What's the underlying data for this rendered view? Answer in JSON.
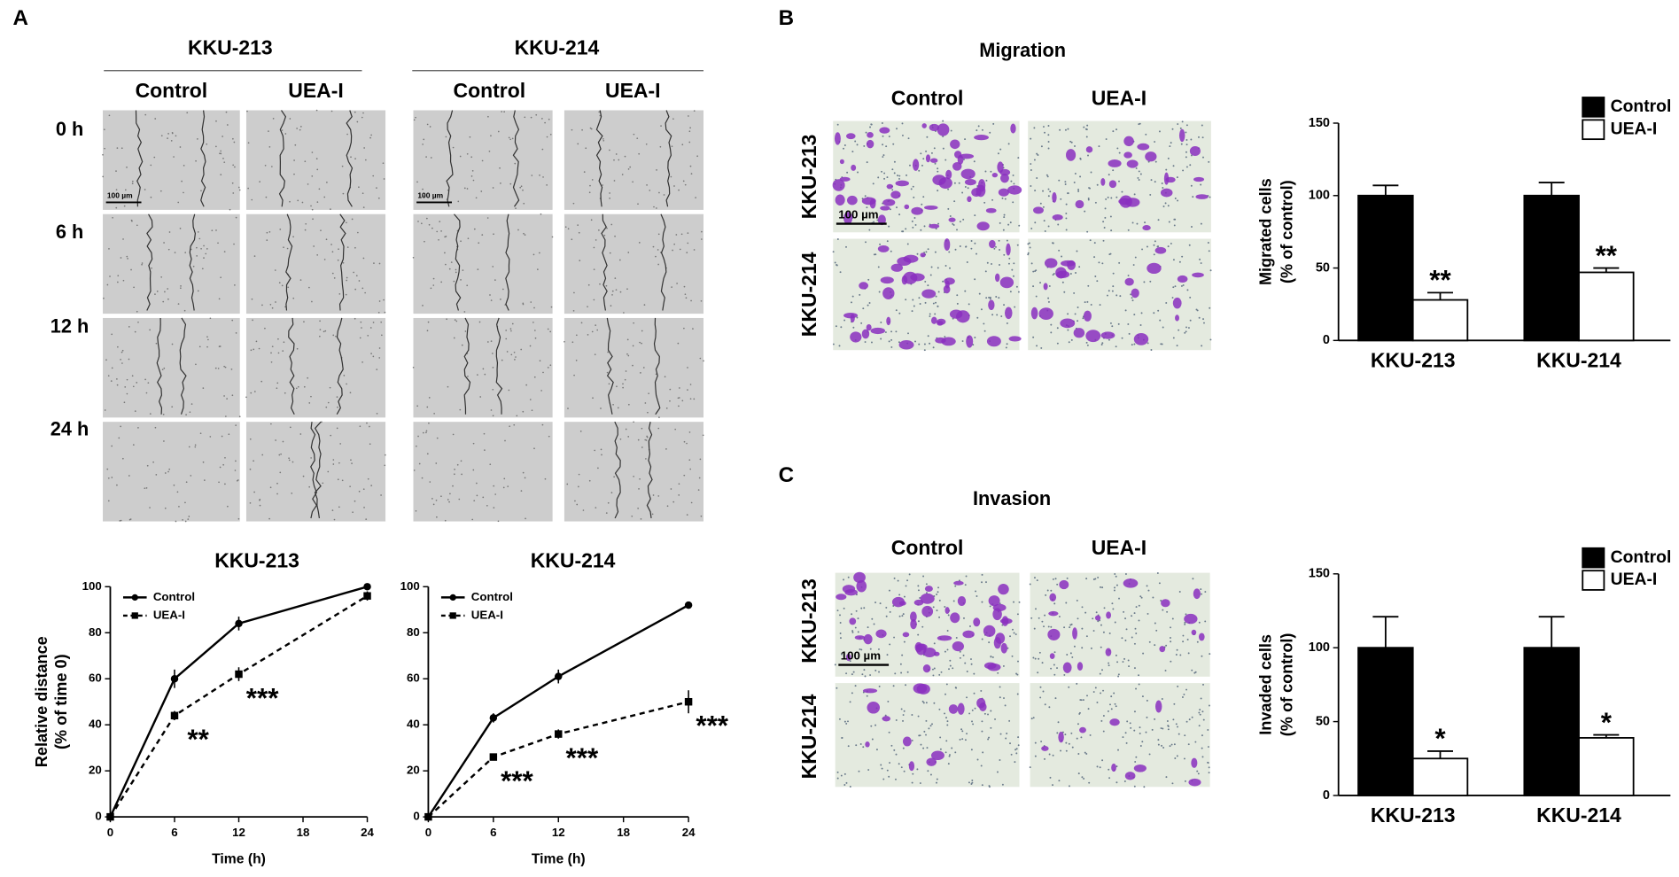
{
  "panels": {
    "A": {
      "label": "A",
      "cell_lines": [
        "KKU-213",
        "KKU-214"
      ],
      "conditions": [
        "Control",
        "UEA-I"
      ],
      "times": [
        "0 h",
        "6 h",
        "12 h",
        "24 h"
      ],
      "scale_bar": "100 µm"
    },
    "B": {
      "label": "B",
      "title": "Migration",
      "conditions": [
        "Control",
        "UEA-I"
      ],
      "cell_lines": [
        "KKU-213",
        "KKU-214"
      ],
      "scale_bar": "100 µm"
    },
    "C": {
      "label": "C",
      "title": "Invasion",
      "conditions": [
        "Control",
        "UEA-I"
      ],
      "cell_lines": [
        "KKU-213",
        "KKU-214"
      ],
      "scale_bar": "100 µm"
    }
  },
  "chart_data": [
    {
      "type": "line",
      "title": "KKU-213",
      "xlabel": "Time (h)",
      "ylabel": [
        "Relative distance",
        "(% of time 0)"
      ],
      "x": [
        0,
        6,
        12,
        24
      ],
      "xlim": [
        0,
        24
      ],
      "xticks": [
        0,
        6,
        12,
        18,
        24
      ],
      "ylim": [
        0,
        100
      ],
      "yticks": [
        0,
        20,
        40,
        60,
        80,
        100
      ],
      "legend": "upper left",
      "series": [
        {
          "name": "Control",
          "color": "#000000",
          "linestyle": "solid",
          "marker": "circle",
          "values": [
            0,
            60,
            84,
            100
          ],
          "errors": [
            0,
            4,
            3,
            1
          ],
          "significance": [
            null,
            null,
            null,
            null
          ]
        },
        {
          "name": "UEA-I",
          "color": "#000000",
          "linestyle": "dashed",
          "marker": "square",
          "values": [
            0,
            44,
            62,
            96
          ],
          "errors": [
            0,
            2,
            3,
            2
          ],
          "significance": [
            null,
            "**",
            "***",
            null
          ]
        }
      ]
    },
    {
      "type": "line",
      "title": "KKU-214",
      "xlabel": "Time (h)",
      "x": [
        0,
        6,
        12,
        24
      ],
      "xlim": [
        0,
        24
      ],
      "xticks": [
        0,
        6,
        12,
        18,
        24
      ],
      "ylim": [
        0,
        100
      ],
      "yticks": [
        0,
        20,
        40,
        60,
        80,
        100
      ],
      "legend": "upper left",
      "series": [
        {
          "name": "Control",
          "color": "#000000",
          "linestyle": "solid",
          "marker": "circle",
          "values": [
            0,
            43,
            61,
            92
          ],
          "errors": [
            0,
            2,
            3,
            1.5
          ],
          "significance": [
            null,
            null,
            null,
            null
          ]
        },
        {
          "name": "UEA-I",
          "color": "#000000",
          "linestyle": "dashed",
          "marker": "square",
          "values": [
            0,
            26,
            36,
            50
          ],
          "errors": [
            0,
            1.5,
            2,
            5
          ],
          "significance": [
            null,
            "***",
            "***",
            "***"
          ]
        }
      ]
    },
    {
      "type": "bar",
      "ylabel": [
        "Migrated cells",
        "(% of control)"
      ],
      "categories": [
        "KKU-213",
        "KKU-214"
      ],
      "ylim": [
        0,
        150
      ],
      "yticks": [
        0,
        50,
        100,
        150
      ],
      "legend": "upper right",
      "series": [
        {
          "name": "Control",
          "color": "#000000",
          "values": [
            100,
            100
          ],
          "errors": [
            7,
            9
          ],
          "significance": [
            null,
            null
          ]
        },
        {
          "name": "UEA-I",
          "color": "#ffffff",
          "values": [
            28,
            47
          ],
          "errors": [
            5,
            3
          ],
          "significance": [
            "**",
            "**"
          ]
        }
      ]
    },
    {
      "type": "bar",
      "ylabel": [
        "Invaded cells",
        "(% of control)"
      ],
      "categories": [
        "KKU-213",
        "KKU-214"
      ],
      "ylim": [
        0,
        150
      ],
      "yticks": [
        0,
        50,
        100,
        150
      ],
      "legend": "upper right",
      "series": [
        {
          "name": "Control",
          "color": "#000000",
          "values": [
            100,
            100
          ],
          "errors": [
            21,
            21
          ],
          "significance": [
            null,
            null
          ]
        },
        {
          "name": "UEA-I",
          "color": "#ffffff",
          "values": [
            25,
            39
          ],
          "errors": [
            5,
            2
          ],
          "significance": [
            "*",
            "*"
          ]
        }
      ]
    }
  ]
}
